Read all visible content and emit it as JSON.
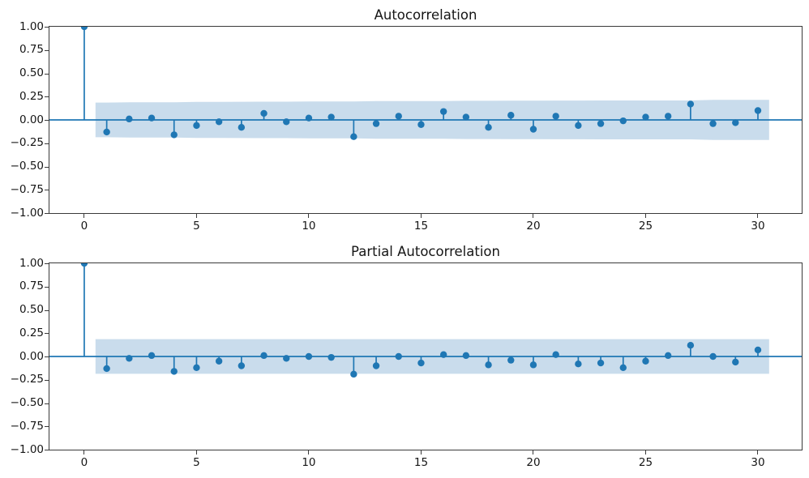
{
  "figure": {
    "background_color": "#ffffff",
    "accent_color": "#1f77b4",
    "band_color": "#c9dcec",
    "axis_color": "#3a3a3a",
    "text_color": "#161616"
  },
  "axes": {
    "y_tick_labels": [
      "1.00",
      "0.75",
      "0.50",
      "0.25",
      "0.00",
      "−0.25",
      "−0.50",
      "−0.75",
      "−1.00"
    ],
    "y_tick_values": [
      1.0,
      0.75,
      0.5,
      0.25,
      0.0,
      -0.25,
      -0.5,
      -0.75,
      -1.0
    ],
    "x_tick_labels": [
      "0",
      "5",
      "10",
      "15",
      "20",
      "25",
      "30"
    ],
    "x_tick_values": [
      0,
      5,
      10,
      15,
      20,
      25,
      30
    ]
  },
  "chart_data": [
    {
      "type": "stem",
      "title": "Autocorrelation",
      "xlabel": "",
      "ylabel": "",
      "xlim": [
        -1.55,
        31.95
      ],
      "ylim": [
        -1.0,
        1.0
      ],
      "grid": false,
      "legend": "none",
      "x": [
        0,
        1,
        2,
        3,
        4,
        5,
        6,
        7,
        8,
        9,
        10,
        11,
        12,
        13,
        14,
        15,
        16,
        17,
        18,
        19,
        20,
        21,
        22,
        23,
        24,
        25,
        26,
        27,
        28,
        29,
        30
      ],
      "values": [
        1.0,
        -0.13,
        0.01,
        0.02,
        -0.16,
        -0.06,
        -0.02,
        -0.08,
        0.07,
        -0.02,
        0.02,
        0.03,
        -0.18,
        -0.04,
        0.04,
        -0.05,
        0.09,
        0.03,
        -0.08,
        0.05,
        -0.1,
        0.04,
        -0.06,
        -0.04,
        -0.01,
        0.03,
        0.04,
        0.17,
        -0.04,
        -0.03,
        0.1
      ],
      "conf_band": {
        "x_start": 0.5,
        "x_end": 30.5,
        "centered_at": 0,
        "halfwidths_by_lag": [
          0.186,
          0.189,
          0.189,
          0.189,
          0.194,
          0.194,
          0.195,
          0.196,
          0.196,
          0.197,
          0.197,
          0.197,
          0.202,
          0.203,
          0.203,
          0.203,
          0.205,
          0.205,
          0.206,
          0.206,
          0.208,
          0.208,
          0.209,
          0.209,
          0.209,
          0.209,
          0.209,
          0.215,
          0.215,
          0.215
        ]
      }
    },
    {
      "type": "stem",
      "title": "Partial Autocorrelation",
      "xlabel": "",
      "ylabel": "",
      "xlim": [
        -1.55,
        31.95
      ],
      "ylim": [
        -1.0,
        1.0
      ],
      "grid": false,
      "legend": "none",
      "x": [
        0,
        1,
        2,
        3,
        4,
        5,
        6,
        7,
        8,
        9,
        10,
        11,
        12,
        13,
        14,
        15,
        16,
        17,
        18,
        19,
        20,
        21,
        22,
        23,
        24,
        25,
        26,
        27,
        28,
        29,
        30
      ],
      "values": [
        1.0,
        -0.13,
        -0.02,
        0.01,
        -0.16,
        -0.12,
        -0.05,
        -0.1,
        0.01,
        -0.02,
        0.0,
        -0.01,
        -0.19,
        -0.1,
        0.0,
        -0.07,
        0.02,
        0.01,
        -0.09,
        -0.04,
        -0.09,
        0.02,
        -0.08,
        -0.07,
        -0.12,
        -0.05,
        0.01,
        0.12,
        0.0,
        -0.06,
        0.07
      ],
      "conf_band": {
        "x_start": 0.5,
        "x_end": 30.5,
        "centered_at": 0,
        "halfwidths_by_lag": [
          0.186,
          0.186,
          0.186,
          0.186,
          0.186,
          0.186,
          0.186,
          0.186,
          0.186,
          0.186,
          0.186,
          0.186,
          0.186,
          0.186,
          0.186,
          0.186,
          0.186,
          0.186,
          0.186,
          0.186,
          0.186,
          0.186,
          0.186,
          0.186,
          0.186,
          0.186,
          0.186,
          0.186,
          0.186,
          0.186
        ]
      }
    }
  ]
}
